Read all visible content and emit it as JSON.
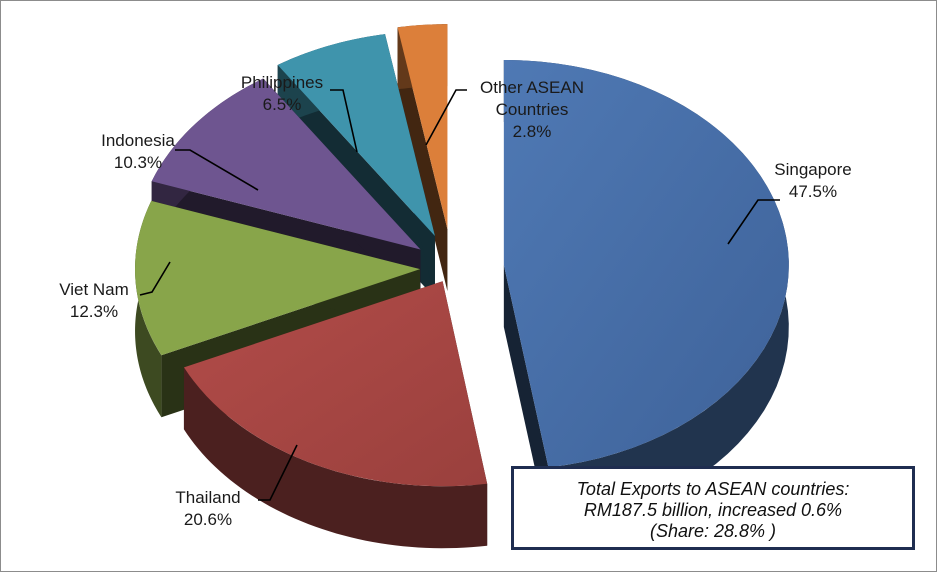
{
  "chart_data": {
    "type": "pie",
    "slices": [
      {
        "name": "Singapore",
        "value": 47.5,
        "label": "47.5%",
        "color": "#4a73ad"
      },
      {
        "name": "Thailand",
        "value": 20.6,
        "label": "20.6%",
        "color": "#a74744"
      },
      {
        "name": "Viet Nam",
        "value": 12.3,
        "label": "12.3%",
        "color": "#88a54a"
      },
      {
        "name": "Indonesia",
        "value": 10.3,
        "label": "10.3%",
        "color": "#6e5590"
      },
      {
        "name": "Philippines",
        "value": 6.5,
        "label": "6.5%",
        "color": "#3f94ac"
      },
      {
        "name": "Other ASEAN Countries",
        "name_lines": [
          "Other ASEAN",
          "Countries"
        ],
        "value": 2.8,
        "label": "2.8%",
        "color": "#dc7f3a"
      }
    ],
    "style": "3d-exploded",
    "annotation": {
      "lines": [
        "Total Exports to ASEAN countries:",
        "RM187.5 billion, increased 0.6%",
        "(Share: 28.8% )"
      ]
    }
  }
}
